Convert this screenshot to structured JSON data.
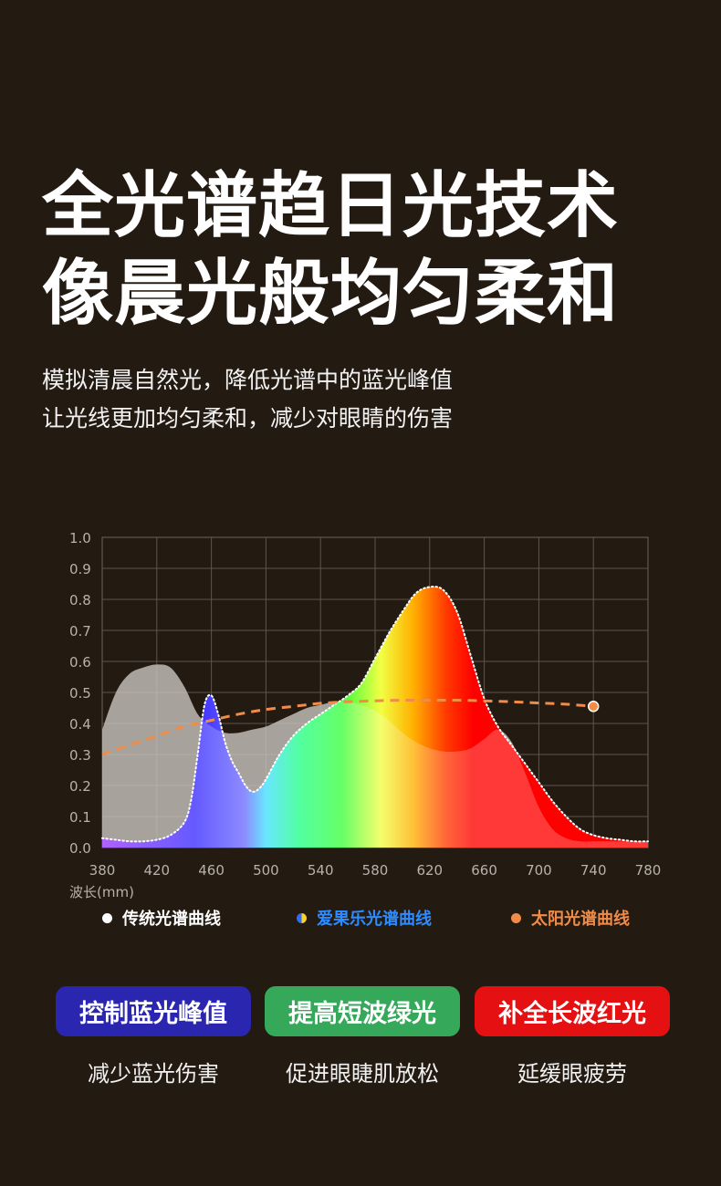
{
  "headline": {
    "line1": "全光谱趋日光技术",
    "line2": "像晨光般均匀柔和"
  },
  "subtitle": {
    "line1": "模拟清晨自然光，降低光谱中的蓝光峰值",
    "line2": "让光线更加均匀柔和，减少对眼睛的伤害"
  },
  "chart_data": {
    "type": "area",
    "xlabel": "波长(mm)",
    "ylabel": "",
    "xlim": [
      380,
      780
    ],
    "ylim": [
      0,
      1.0
    ],
    "x_ticks": [
      "380",
      "420",
      "460",
      "500",
      "540",
      "580",
      "620",
      "660",
      "700",
      "740",
      "780"
    ],
    "y_ticks": [
      "0.0",
      "0.1",
      "0.2",
      "0.3",
      "0.4",
      "0.5",
      "0.6",
      "0.7",
      "0.8",
      "0.9",
      "1.0"
    ],
    "grid": true,
    "series": [
      {
        "name": "传统光谱曲线",
        "color": "#b0a8a0",
        "x": [
          380,
          390,
          400,
          410,
          420,
          430,
          440,
          450,
          460,
          470,
          480,
          490,
          500,
          510,
          520,
          530,
          540,
          550,
          560,
          570,
          580,
          590,
          600,
          610,
          620,
          630,
          640,
          650,
          660,
          670,
          680,
          690,
          700,
          710,
          720,
          730,
          740,
          750,
          760,
          770,
          780
        ],
        "y": [
          0.38,
          0.5,
          0.56,
          0.58,
          0.59,
          0.58,
          0.52,
          0.43,
          0.39,
          0.37,
          0.37,
          0.38,
          0.39,
          0.41,
          0.43,
          0.45,
          0.46,
          0.47,
          0.47,
          0.46,
          0.44,
          0.41,
          0.37,
          0.34,
          0.32,
          0.31,
          0.31,
          0.32,
          0.35,
          0.38,
          0.34,
          0.24,
          0.13,
          0.06,
          0.03,
          0.02,
          0.02,
          0.02,
          0.02,
          0.02,
          0.02
        ]
      },
      {
        "name": "爱果乐光谱曲线",
        "color": "#ff2222",
        "x": [
          380,
          390,
          400,
          410,
          420,
          430,
          440,
          445,
          450,
          455,
          460,
          465,
          470,
          475,
          480,
          485,
          490,
          495,
          500,
          510,
          520,
          530,
          540,
          550,
          560,
          570,
          580,
          590,
          600,
          610,
          620,
          630,
          640,
          650,
          660,
          670,
          680,
          690,
          700,
          710,
          720,
          730,
          740,
          750,
          760,
          770,
          780
        ],
        "y": [
          0.03,
          0.025,
          0.02,
          0.02,
          0.025,
          0.04,
          0.08,
          0.15,
          0.3,
          0.46,
          0.49,
          0.43,
          0.34,
          0.28,
          0.24,
          0.2,
          0.18,
          0.19,
          0.22,
          0.3,
          0.36,
          0.4,
          0.43,
          0.46,
          0.49,
          0.53,
          0.61,
          0.69,
          0.76,
          0.82,
          0.84,
          0.83,
          0.76,
          0.62,
          0.48,
          0.39,
          0.33,
          0.27,
          0.21,
          0.15,
          0.1,
          0.06,
          0.04,
          0.03,
          0.025,
          0.02,
          0.02
        ]
      },
      {
        "name": "太阳光谱曲线",
        "color": "#f08c48",
        "x": [
          380,
          400,
          420,
          440,
          460,
          480,
          500,
          520,
          540,
          560,
          580,
          600,
          620,
          640,
          660,
          680,
          700,
          720,
          740
        ],
        "y": [
          0.3,
          0.33,
          0.36,
          0.39,
          0.41,
          0.43,
          0.445,
          0.455,
          0.465,
          0.47,
          0.473,
          0.475,
          0.475,
          0.475,
          0.473,
          0.47,
          0.466,
          0.462,
          0.455
        ]
      }
    ]
  },
  "legend": [
    {
      "label": "传统光谱曲线",
      "color": "#ffffff",
      "dot": "white-dot-icon"
    },
    {
      "label": "爱果乐光谱曲线",
      "color": "#2d8cff",
      "dot": "blue-yellow-dot-icon"
    },
    {
      "label": "太阳光谱曲线",
      "color": "#f08c48",
      "dot": "orange-dot-icon"
    }
  ],
  "features": [
    {
      "title": "控制蓝光峰值",
      "desc": "减少蓝光伤害",
      "color": "#2a26b0"
    },
    {
      "title": "提高短波绿光",
      "desc": "促进眼睫肌放松",
      "color": "#35a85a"
    },
    {
      "title": "补全长波红光",
      "desc": "延缓眼疲劳",
      "color": "#e41012"
    }
  ]
}
